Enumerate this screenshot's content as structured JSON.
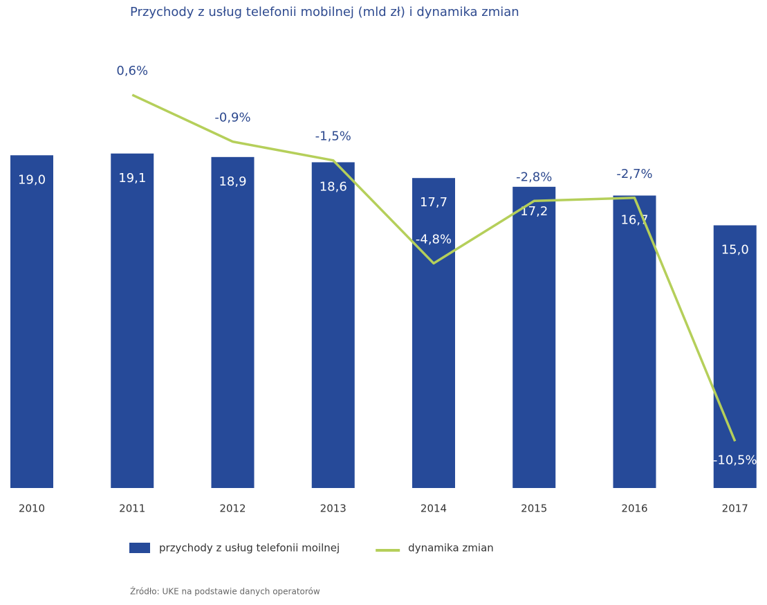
{
  "chart_data": {
    "type": "bar_line",
    "title": "Przychody z usług telefonii mobilnej (mld zł) i dynamika zmian",
    "categories": [
      "2010",
      "2011",
      "2012",
      "2013",
      "2014",
      "2015",
      "2016",
      "2017"
    ],
    "series": [
      {
        "name": "przychody z usług telefonii moilnej",
        "type": "bar",
        "color": "#264a99",
        "values": [
          19.0,
          19.1,
          18.9,
          18.6,
          17.7,
          17.2,
          16.7,
          15.0
        ],
        "value_labels": [
          "19,0",
          "19,1",
          "18,9",
          "18,6",
          "17,7",
          "17,2",
          "16,7",
          "15,0"
        ]
      },
      {
        "name": "dynamika zmian",
        "type": "line",
        "axis": "y2",
        "color": "#b5cf5a",
        "values": [
          null,
          0.6,
          -0.9,
          -1.5,
          -4.8,
          -2.8,
          -2.7,
          -10.5
        ],
        "value_labels": [
          null,
          "0,6%",
          "-0,9%",
          "-1,5%",
          "-4,8%",
          "-2,8%",
          "-2,7%",
          "-10,5%"
        ]
      }
    ],
    "ylim": [
      0,
      20
    ],
    "y2lim": [
      -12,
      1
    ],
    "source": "Źródło: UKE na podstawie danych operatorów"
  }
}
